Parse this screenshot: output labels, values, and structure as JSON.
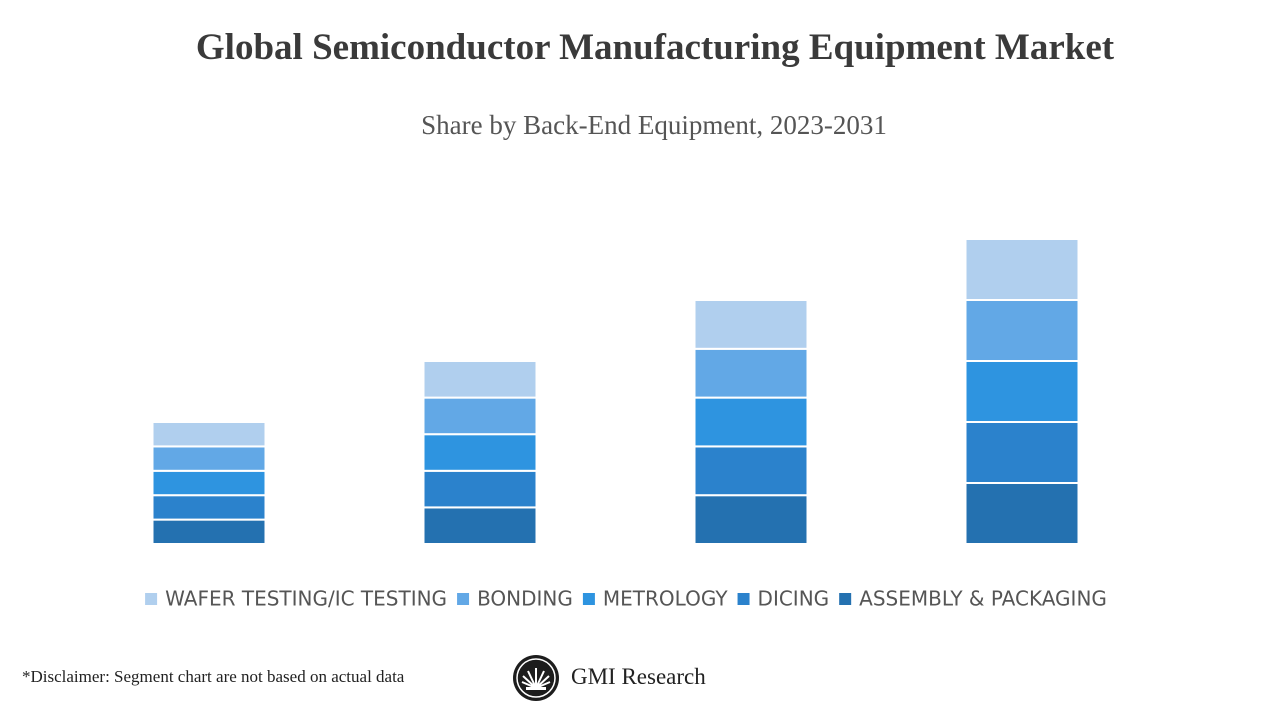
{
  "chart_data": {
    "type": "bar",
    "stacked": true,
    "title": "Global Semiconductor Manufacturing Equipment Market",
    "subtitle": "Share by Back-End Equipment, 2023-2031",
    "categories": [
      null,
      null,
      null,
      null
    ],
    "series": [
      {
        "name": "WAFER TESTING/IC TESTING",
        "color": "#b0cfee",
        "values": [
          2,
          3,
          4,
          5
        ]
      },
      {
        "name": "BONDING",
        "color": "#62a8e6",
        "values": [
          2,
          3,
          4,
          5
        ]
      },
      {
        "name": "METROLOGY",
        "color": "#2e94e0",
        "values": [
          2,
          3,
          4,
          5
        ]
      },
      {
        "name": "DICING",
        "color": "#2b82cc",
        "values": [
          2,
          3,
          4,
          5
        ]
      },
      {
        "name": "ASSEMBLY & PACKAGING",
        "color": "#2471b0",
        "values": [
          2,
          3,
          4,
          5
        ]
      }
    ],
    "ylim": [
      0,
      30
    ],
    "grid": false,
    "legend": "bottom"
  },
  "footer": {
    "disclaimer": "*Disclaimer:  Segment chart are not based on actual data",
    "brand": "GMI Research"
  }
}
